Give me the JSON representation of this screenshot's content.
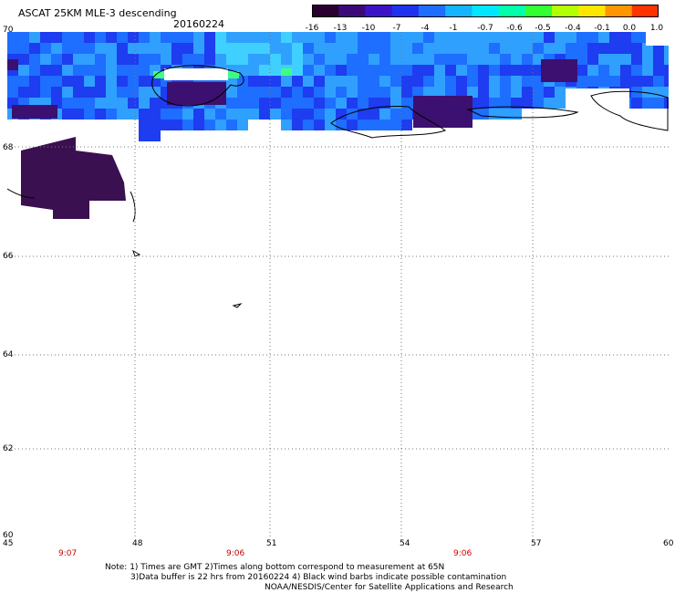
{
  "header": {
    "title": "ASCAT 25KM MLE-3 descending",
    "date": "20160224"
  },
  "colorbar": {
    "labels": [
      "-16",
      "-13",
      "-10",
      "-7",
      "-4",
      "-1",
      "-0.7",
      "-0.6",
      "-0.5",
      "-0.4",
      "-0.1",
      "0.0",
      "1.0"
    ],
    "colors": [
      "#2a0030",
      "#3c0a78",
      "#3c14c8",
      "#1e32f0",
      "#1e6eff",
      "#14b4ff",
      "#00e6ff",
      "#00ffaa",
      "#32ff32",
      "#b4ff00",
      "#ffe600",
      "#ff9600",
      "#ff3200"
    ]
  },
  "axes": {
    "x_labels": [
      "45",
      "48",
      "51",
      "54",
      "57",
      "60"
    ],
    "y_labels": [
      "70",
      "68",
      "66",
      "64",
      "62",
      "60"
    ],
    "times": [
      "9:07",
      "9:06",
      "9:06"
    ]
  },
  "notes": {
    "line1": "Note: 1) Times are GMT 2)Times along bottom correspond to measurement at 65N",
    "line2": "3)Data buffer is 22 hrs from 20160224 4) Black wind barbs indicate possible contamination",
    "line3": "NOAA/NESDIS/Center for Satellite Applications and Research"
  },
  "map_colors": {
    "deep_purple": "#3a1050",
    "purple": "#3c1070",
    "blue": "#1e3cf0",
    "mid_blue": "#1e6eff",
    "light_blue": "#30a0ff",
    "cyan": "#40d0ff",
    "green": "#40ff80"
  }
}
